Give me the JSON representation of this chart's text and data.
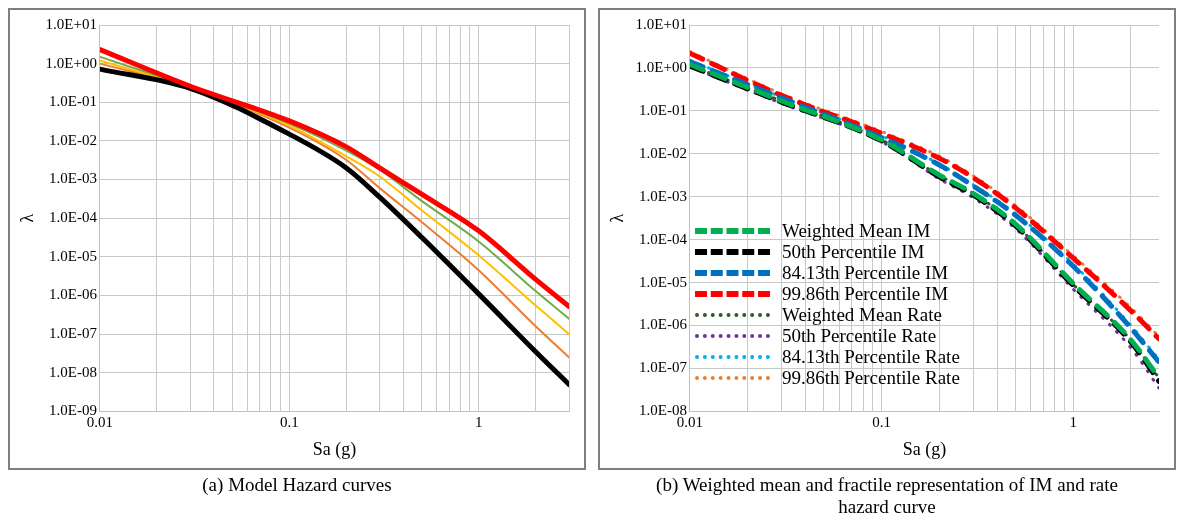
{
  "chart_data": [
    {
      "type": "line",
      "title": "(a)  Model Hazard curves",
      "xlabel": "Sa (g)",
      "ylabel": "λ",
      "log": "xy",
      "grid": true,
      "legend": false,
      "marker": "none",
      "x": [
        0.01,
        0.03,
        0.1,
        0.2,
        0.3,
        0.5,
        1,
        2,
        3
      ],
      "xlim": [
        0.01,
        3
      ],
      "xticks": [
        0.01,
        {
          "value": 0.02,
          "label": null
        },
        {
          "value": 0.03,
          "label": null
        },
        {
          "value": 0.04,
          "label": null
        },
        {
          "value": 0.05,
          "label": null
        },
        {
          "value": 0.06,
          "label": null
        },
        {
          "value": 0.07,
          "label": null
        },
        {
          "value": 0.08,
          "label": null
        },
        {
          "value": 0.09,
          "label": null
        },
        0.1,
        {
          "value": 0.2,
          "label": null
        },
        {
          "value": 0.3,
          "label": null
        },
        {
          "value": 0.4,
          "label": null
        },
        {
          "value": 0.5,
          "label": null
        },
        {
          "value": 0.6,
          "label": null
        },
        {
          "value": 0.7,
          "label": null
        },
        {
          "value": 0.8,
          "label": null
        },
        {
          "value": 0.9,
          "label": null
        },
        1,
        {
          "value": 2,
          "label": null
        },
        {
          "value": 3,
          "label": null
        }
      ],
      "ylim": [
        1e-09,
        10
      ],
      "yticks": [
        {
          "value": 1e-09,
          "label": "1.0E-09"
        },
        {
          "value": 1e-08,
          "label": "1.0E-08"
        },
        {
          "value": 1e-07,
          "label": "1.0E-07"
        },
        {
          "value": 1e-06,
          "label": "1.0E-06"
        },
        {
          "value": 1e-05,
          "label": "1.0E-05"
        },
        {
          "value": 0.0001,
          "label": "1.0E-04"
        },
        {
          "value": 0.001,
          "label": "1.0E-03"
        },
        {
          "value": 0.01,
          "label": "1.0E-02"
        },
        {
          "value": 0.1,
          "label": "1.0E-01"
        },
        {
          "value": 1,
          "label": "1.0E+00"
        },
        {
          "value": 10,
          "label": "1.0E+01"
        }
      ],
      "series": [
        {
          "color": "#70ad47",
          "values": [
            1.5,
            0.25,
            0.028,
            0.0056,
            0.0018,
            0.00028,
            2.5e-05,
            1.3e-06,
            2.5e-07
          ]
        },
        {
          "color": "#ffc000",
          "values": [
            1.2,
            0.24,
            0.025,
            0.004,
            0.0012,
            0.00016,
            1.1e-05,
            5.5e-07,
            1e-07
          ]
        },
        {
          "color": "#ed7d31",
          "values": [
            1.0,
            0.24,
            0.022,
            0.0032,
            0.0006,
            8e-05,
            4.5e-06,
            1.6e-07,
            2.5e-08
          ]
        },
        {
          "color": "#ff0000",
          "values": [
            2.3,
            0.26,
            0.033,
            0.007,
            0.002,
            0.00042,
            4.7e-05,
            2.6e-06,
            5.2e-07
          ]
        },
        {
          "color": "#000000",
          "values": [
            0.72,
            0.23,
            0.015,
            0.002,
            0.00035,
            3.2e-05,
            1.1e-06,
            3.5e-08,
            5e-09
          ]
        }
      ]
    },
    {
      "type": "line",
      "title": "(b)   Weighted mean and fractile representation of IM and rate hazard curve",
      "xlabel": "Sa (g)",
      "ylabel": "λ",
      "log": "xy",
      "grid": true,
      "legend": "bottom left",
      "marker": "none",
      "x": [
        0.01,
        0.03,
        0.1,
        0.2,
        0.3,
        0.5,
        1,
        2,
        2.8
      ],
      "xlim": [
        0.01,
        2.8
      ],
      "xticks": [
        0.01,
        {
          "value": 0.02,
          "label": null
        },
        {
          "value": 0.03,
          "label": null
        },
        {
          "value": 0.04,
          "label": null
        },
        {
          "value": 0.05,
          "label": null
        },
        {
          "value": 0.06,
          "label": null
        },
        {
          "value": 0.07,
          "label": null
        },
        {
          "value": 0.08,
          "label": null
        },
        {
          "value": 0.09,
          "label": null
        },
        0.1,
        {
          "value": 0.2,
          "label": null
        },
        {
          "value": 0.3,
          "label": null
        },
        {
          "value": 0.4,
          "label": null
        },
        {
          "value": 0.5,
          "label": null
        },
        {
          "value": 0.6,
          "label": null
        },
        {
          "value": 0.7,
          "label": null
        },
        {
          "value": 0.8,
          "label": null
        },
        {
          "value": 0.9,
          "label": null
        },
        1,
        {
          "value": 2,
          "label": null
        }
      ],
      "ylim": [
        1e-08,
        10
      ],
      "yticks": [
        {
          "value": 1e-08,
          "label": "1.0E-08"
        },
        {
          "value": 1e-07,
          "label": "1.0E-07"
        },
        {
          "value": 1e-06,
          "label": "1.0E-06"
        },
        {
          "value": 1e-05,
          "label": "1.0E-05"
        },
        {
          "value": 0.0001,
          "label": "1.0E-04"
        },
        {
          "value": 0.001,
          "label": "1.0E-03"
        },
        {
          "value": 0.01,
          "label": "1.0E-02"
        },
        {
          "value": 0.1,
          "label": "1.0E-01"
        },
        {
          "value": 1,
          "label": "1.0E+00"
        },
        {
          "value": 10,
          "label": "1.0E+01"
        }
      ],
      "series": [
        {
          "name": "Weighted Mean IM",
          "color": "#00b050",
          "line_style": "dashed",
          "values": [
            1.2,
            0.17,
            0.021,
            0.0032,
            0.0012,
            0.00023,
            9.5e-06,
            4.6e-07,
            6e-08
          ]
        },
        {
          "name": "50th Percentile IM",
          "color": "#000000",
          "line_style": "dashed",
          "values": [
            1.1,
            0.16,
            0.02,
            0.0029,
            0.0011,
            0.00021,
            8.5e-06,
            4.1e-07,
            5e-08
          ]
        },
        {
          "name": "84.13th Percentile IM",
          "color": "#0070c0",
          "line_style": "dashed",
          "values": [
            1.4,
            0.2,
            0.024,
            0.0055,
            0.0018,
            0.00037,
            2.4e-05,
            8.7e-07,
            1.4e-07
          ]
        },
        {
          "name": "99.86th Percentile IM",
          "color": "#ff0000",
          "line_style": "dashed",
          "values": [
            2.2,
            0.23,
            0.03,
            0.0079,
            0.0028,
            0.00055,
            3.7e-05,
            2.2e-06,
            4.9e-07
          ]
        },
        {
          "name": "Weighted Mean Rate",
          "color": "#375623",
          "line_style": "dotted",
          "values": [
            1.15,
            0.17,
            0.021,
            0.0031,
            0.0012,
            0.00022,
            9e-06,
            4.5e-07,
            6e-08
          ]
        },
        {
          "name": "50th Percentile Rate",
          "color": "#7030a0",
          "line_style": "dotted",
          "values": [
            1.05,
            0.15,
            0.019,
            0.0026,
            0.00095,
            0.00018,
            7e-06,
            3e-07,
            3.5e-08
          ]
        },
        {
          "name": "84.13th Percentile Rate",
          "color": "#00b0f0",
          "line_style": "dotted",
          "values": [
            1.5,
            0.21,
            0.026,
            0.0058,
            0.0019,
            0.0004,
            2.7e-05,
            1e-06,
            1.6e-07
          ]
        },
        {
          "name": "99.86th Percentile Rate",
          "color": "#ed7d31",
          "line_style": "dotted",
          "values": [
            2.4,
            0.25,
            0.033,
            0.0088,
            0.0031,
            0.00062,
            4.2e-05,
            2.6e-06,
            5.5e-07
          ]
        }
      ]
    }
  ]
}
